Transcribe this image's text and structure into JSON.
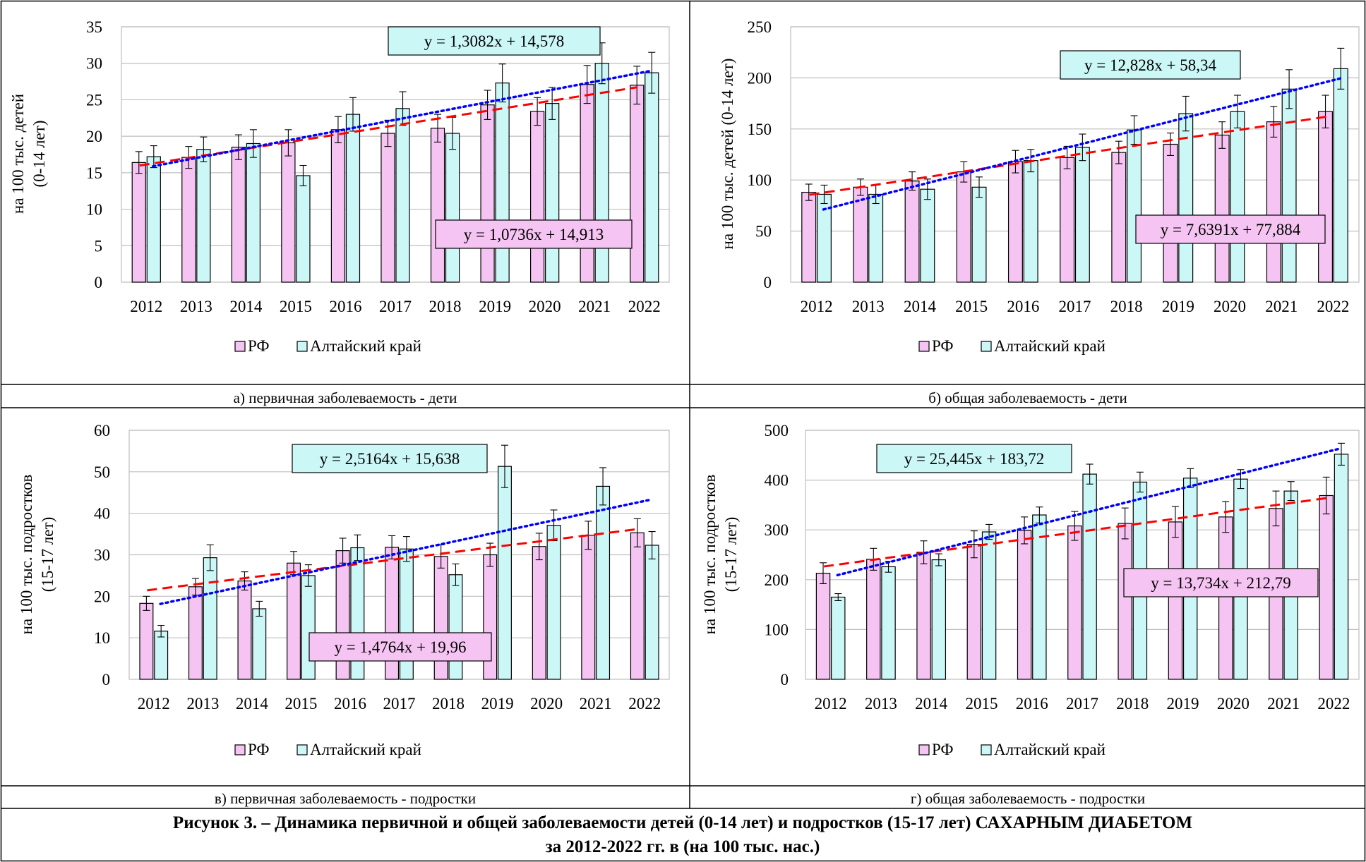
{
  "legend_labels": {
    "rf": "РФ",
    "altai": "Алтайский край"
  },
  "colors": {
    "rf_fill": "#F5C4F2",
    "altai_fill": "#CCF7F7",
    "rf_trend": "#FF0000",
    "altai_trend": "#0000FF",
    "eq_rf_bg": "#F5C4F2",
    "eq_altai_bg": "#CCF7F7",
    "grid": "#BFBFBF",
    "border": "#000000"
  },
  "figure_caption": {
    "line1": "Рисунок 3. – Динамика первичной и общей заболеваемости детей (0-14 лет) и подростков (15-17 лет) САХАРНЫМ ДИАБЕТОМ",
    "line2": "за 2012-2022 гг. в (на 100 тыс. нас.)"
  },
  "chart_data": [
    {
      "type": "bar",
      "caption": "а) первичная заболеваемость - дети",
      "ylabel": [
        "на 100 тыс. детей",
        "(0-14 лет)"
      ],
      "categories": [
        "2012",
        "2013",
        "2014",
        "2015",
        "2016",
        "2017",
        "2018",
        "2019",
        "2020",
        "2021",
        "2022"
      ],
      "ylim": [
        0,
        35
      ],
      "ytick_step": 5,
      "grid": true,
      "legend": "bottom",
      "series": [
        {
          "name": "РФ",
          "values": [
            16.4,
            17.1,
            18.5,
            19.1,
            20.9,
            20.4,
            21.1,
            24.3,
            23.4,
            27.1,
            27.0
          ],
          "errors": [
            1.5,
            1.5,
            1.7,
            1.8,
            1.8,
            1.8,
            1.9,
            2.0,
            1.9,
            2.6,
            2.6
          ]
        },
        {
          "name": "Алтайский край",
          "values": [
            17.2,
            18.2,
            19.0,
            14.6,
            23.0,
            23.8,
            20.4,
            27.3,
            24.5,
            30.0,
            28.7
          ],
          "errors": [
            1.5,
            1.7,
            1.9,
            1.4,
            2.3,
            2.3,
            2.2,
            2.6,
            2.2,
            2.8,
            2.8
          ]
        }
      ],
      "trendlines": [
        {
          "series": "РФ",
          "slope": 1.0736,
          "intercept": 14.913,
          "label": "y = 1,0736x + 14,913"
        },
        {
          "series": "Алтайский край",
          "slope": 1.3082,
          "intercept": 14.578,
          "label": "y = 1,3082x + 14,578"
        }
      ]
    },
    {
      "type": "bar",
      "caption": "б) общая заболеваемость - дети",
      "ylabel": [
        "на 100 тыс. детей (0-14 лет)"
      ],
      "categories": [
        "2012",
        "2013",
        "2014",
        "2015",
        "2016",
        "2017",
        "2018",
        "2019",
        "2020",
        "2021",
        "2022"
      ],
      "ylim": [
        0,
        250
      ],
      "ytick_step": 50,
      "grid": true,
      "legend": "bottom",
      "series": [
        {
          "name": "РФ",
          "values": [
            88,
            93,
            99,
            108,
            118,
            122,
            127,
            135,
            144,
            157,
            167
          ],
          "errors": [
            8,
            8,
            9,
            10,
            11,
            11,
            11,
            11,
            13,
            15,
            16
          ]
        },
        {
          "name": "Алтайский край",
          "values": [
            86,
            86,
            91,
            93,
            119,
            132,
            149,
            165,
            167,
            189,
            209
          ],
          "errors": [
            9,
            9,
            10,
            10,
            11,
            13,
            14,
            17,
            16,
            19,
            20
          ]
        }
      ],
      "trendlines": [
        {
          "series": "РФ",
          "slope": 7.6391,
          "intercept": 77.884,
          "label": "y = 7,6391x + 77,884"
        },
        {
          "series": "Алтайский край",
          "slope": 12.828,
          "intercept": 58.34,
          "label": "y = 12,828x + 58,34"
        }
      ]
    },
    {
      "type": "bar",
      "caption": "в) первичная заболеваемость - подростки",
      "ylabel": [
        "на 100 тыс. подростков",
        "(15-17 лет)"
      ],
      "categories": [
        "2012",
        "2013",
        "2014",
        "2015",
        "2016",
        "2017",
        "2018",
        "2019",
        "2020",
        "2021",
        "2022"
      ],
      "ylim": [
        0,
        60
      ],
      "ytick_step": 10,
      "grid": true,
      "legend": "bottom",
      "series": [
        {
          "name": "РФ",
          "values": [
            18.3,
            22.3,
            23.7,
            28.0,
            31.0,
            31.8,
            29.6,
            30.0,
            32.0,
            34.7,
            35.3
          ],
          "errors": [
            1.7,
            2.0,
            2.2,
            2.8,
            3.0,
            2.8,
            2.8,
            2.8,
            3.2,
            3.4,
            3.4
          ]
        },
        {
          "name": "Алтайский край",
          "values": [
            11.6,
            29.3,
            17.0,
            25.0,
            31.7,
            31.4,
            25.2,
            51.3,
            37.1,
            46.5,
            32.3
          ],
          "errors": [
            1.4,
            3.1,
            1.8,
            2.6,
            3.1,
            3.0,
            2.6,
            5.1,
            3.7,
            4.5,
            3.3
          ]
        }
      ],
      "trendlines": [
        {
          "series": "РФ",
          "slope": 1.4764,
          "intercept": 19.96,
          "label": "y = 1,4764x + 19,96"
        },
        {
          "series": "Алтайский край",
          "slope": 2.5164,
          "intercept": 15.638,
          "label": "y = 2,5164x + 15,638"
        }
      ]
    },
    {
      "type": "bar",
      "caption": "г) общая заболеваемость - подростки",
      "ylabel": [
        "на 100 тыс. подростков",
        "(15-17 лет)"
      ],
      "categories": [
        "2012",
        "2013",
        "2014",
        "2015",
        "2016",
        "2017",
        "2018",
        "2019",
        "2020",
        "2021",
        "2022"
      ],
      "ylim": [
        0,
        500
      ],
      "ytick_step": 100,
      "grid": true,
      "legend": "bottom",
      "series": [
        {
          "name": "РФ",
          "values": [
            213,
            241,
            255,
            271,
            299,
            308,
            313,
            316,
            326,
            343,
            369
          ],
          "errors": [
            21,
            22,
            23,
            27,
            27,
            29,
            31,
            31,
            31,
            35,
            37
          ]
        },
        {
          "name": "Алтайский край",
          "values": [
            165,
            226,
            240,
            296,
            330,
            412,
            396,
            404,
            402,
            378,
            452
          ],
          "errors": [
            7,
            11,
            12,
            15,
            16,
            20,
            20,
            19,
            19,
            19,
            22
          ]
        }
      ],
      "trendlines": [
        {
          "series": "РФ",
          "slope": 13.734,
          "intercept": 212.79,
          "label": "y = 13,734x + 212,79"
        },
        {
          "series": "Алтайский край",
          "slope": 25.445,
          "intercept": 183.72,
          "label": "y = 25,445x + 183,72"
        }
      ]
    }
  ]
}
